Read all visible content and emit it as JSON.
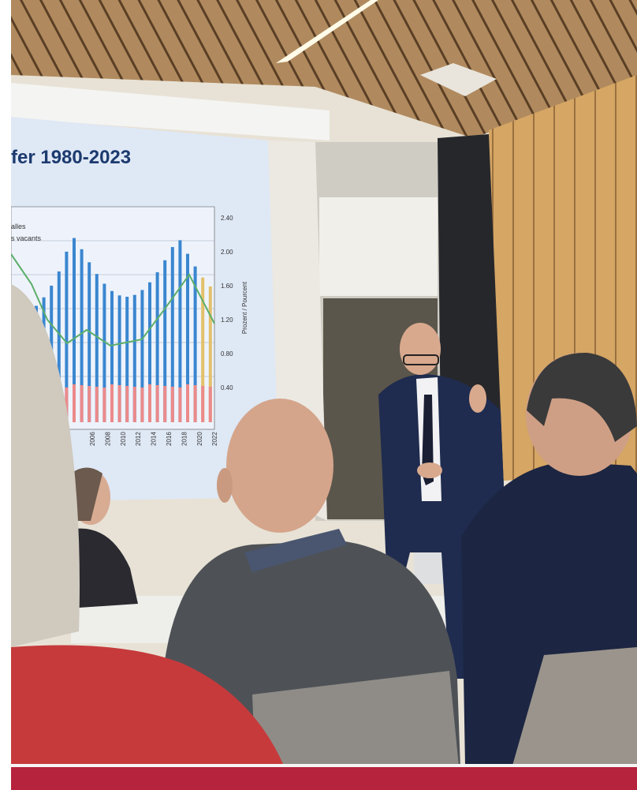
{
  "slide": {
    "title": "fer 1980-2023",
    "legend": [
      "alles",
      "s vacants"
    ],
    "right_axis_labels": [
      "2.40",
      "2.00",
      "1.60",
      "1.20",
      "0.80",
      "0.40"
    ],
    "right_axis_title": "Prozent / Pourcent",
    "x_labels": [
      "2006",
      "2008",
      "2010",
      "2012",
      "2014",
      "2016",
      "2018",
      "2020",
      "2022"
    ]
  }
}
